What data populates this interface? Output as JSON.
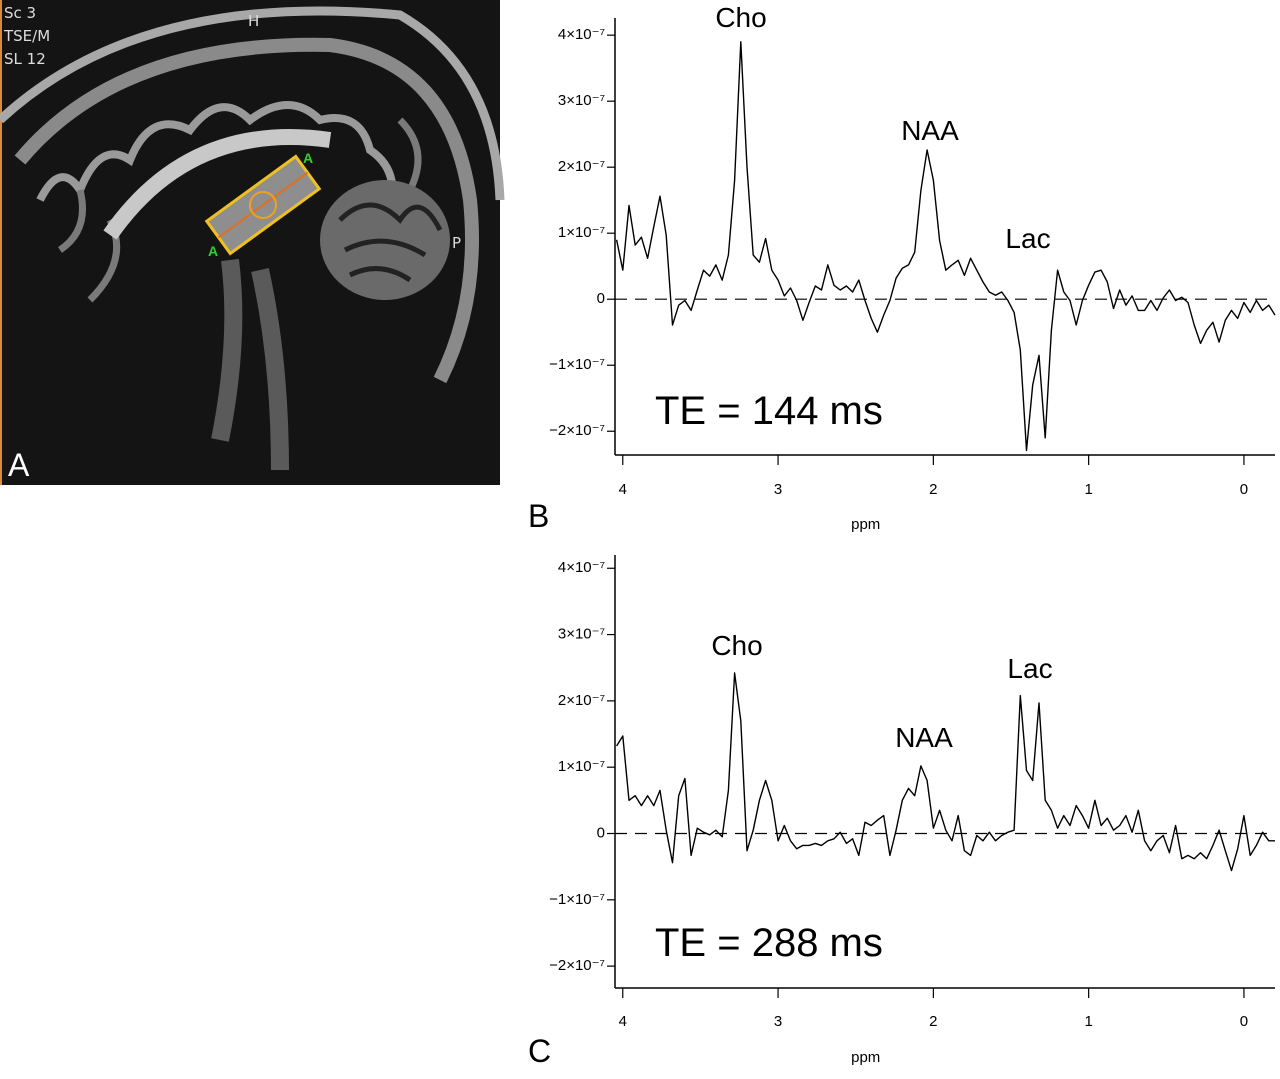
{
  "image_panel": {
    "panel_label": "A",
    "scan_labels": [
      "Sc 3",
      "TSE/M",
      "SL 12"
    ],
    "orientation_labels": [
      "H",
      "P"
    ],
    "voxel_labels": [
      "A",
      "A"
    ]
  },
  "chart_data": [
    {
      "type": "line",
      "panel_label": "B",
      "xlabel": "ppm",
      "annotations": [
        "Cho",
        "NAA",
        "Lac",
        "TE = 144 ms"
      ],
      "line_color": "#000000",
      "zero_line": true,
      "grid": false,
      "xlim": [
        4.05,
        -0.2
      ],
      "xticks": [
        4,
        3,
        2,
        1,
        0
      ],
      "ylim": [
        -2.36e-07,
        4.26e-07
      ],
      "yticks": [
        {
          "value": -2e-07,
          "label": "−2×10⁻⁷"
        },
        {
          "value": -1e-07,
          "label": "−1×10⁻⁷"
        },
        0,
        {
          "value": 1e-07,
          "label": "1×10⁻⁷"
        },
        {
          "value": 2e-07,
          "label": "2×10⁻⁷"
        },
        {
          "value": 3e-07,
          "label": "3×10⁻⁷"
        },
        {
          "value": 4e-07,
          "label": "4×10⁻⁷"
        }
      ],
      "x": [
        4.04,
        4.0,
        3.96,
        3.92,
        3.88,
        3.84,
        3.8,
        3.76,
        3.72,
        3.68,
        3.64,
        3.6,
        3.56,
        3.52,
        3.48,
        3.44,
        3.4,
        3.36,
        3.32,
        3.28,
        3.24,
        3.2,
        3.16,
        3.12,
        3.08,
        3.04,
        3.0,
        2.96,
        2.92,
        2.88,
        2.84,
        2.8,
        2.76,
        2.72,
        2.68,
        2.64,
        2.6,
        2.56,
        2.52,
        2.48,
        2.44,
        2.4,
        2.36,
        2.32,
        2.28,
        2.24,
        2.2,
        2.16,
        2.12,
        2.08,
        2.04,
        2.0,
        1.96,
        1.92,
        1.88,
        1.84,
        1.8,
        1.76,
        1.72,
        1.68,
        1.64,
        1.6,
        1.56,
        1.52,
        1.48,
        1.44,
        1.4,
        1.36,
        1.32,
        1.28,
        1.24,
        1.2,
        1.16,
        1.12,
        1.08,
        1.04,
        1.0,
        0.96,
        0.92,
        0.88,
        0.84,
        0.8,
        0.76,
        0.72,
        0.68,
        0.64,
        0.6,
        0.56,
        0.52,
        0.48,
        0.44,
        0.4,
        0.36,
        0.32,
        0.28,
        0.24,
        0.2,
        0.16,
        0.12,
        0.08,
        0.04,
        0.0,
        -0.04,
        -0.08,
        -0.12,
        -0.16,
        -0.2
      ],
      "values": [
        9e-08,
        4.4e-08,
        1.42e-07,
        8.2e-08,
        9.4e-08,
        6.2e-08,
        1.1e-07,
        1.56e-07,
        9.7e-08,
        -3.9e-08,
        -9e-09,
        -2e-09,
        -1.7e-08,
        1.4e-08,
        4.4e-08,
        3.5e-08,
        5.2e-08,
        2.9e-08,
        6.7e-08,
        1.8e-07,
        3.9e-07,
        2e-07,
        6.7e-08,
        5.6e-08,
        9.2e-08,
        4.4e-08,
        2.9e-08,
        5e-09,
        1.7e-08,
        -2e-09,
        -3.2e-08,
        -5e-09,
        2e-08,
        1.4e-08,
        5.2e-08,
        2.1e-08,
        1.4e-08,
        2e-08,
        1.1e-08,
        2.9e-08,
        -2e-09,
        -2.9e-08,
        -5e-08,
        -2.4e-08,
        -2e-09,
        3.2e-08,
        4.7e-08,
        5.2e-08,
        7.1e-08,
        1.65e-07,
        2.26e-07,
        1.8e-07,
        8.9e-08,
        4.4e-08,
        5.2e-08,
        5.9e-08,
        3.6e-08,
        6.2e-08,
        4.4e-08,
        2.6e-08,
        1.1e-08,
        6e-09,
        1.1e-08,
        -2e-09,
        -2e-08,
        -7.7e-08,
        -2.29e-07,
        -1.3e-07,
        -8.5e-08,
        -2.1e-07,
        -4.7e-08,
        4.4e-08,
        1.1e-08,
        -2e-09,
        -3.9e-08,
        -2e-09,
        2.1e-08,
        4.1e-08,
        4.4e-08,
        2.6e-08,
        -1.4e-08,
        1.4e-08,
        -9e-09,
        5e-09,
        -1.7e-08,
        -1.7e-08,
        -2e-09,
        -1.7e-08,
        2e-09,
        1.4e-08,
        -2e-09,
        3e-09,
        -5e-09,
        -3.9e-08,
        -6.7e-08,
        -4.7e-08,
        -3.5e-08,
        -6.5e-08,
        -3.2e-08,
        -1.7e-08,
        -2.9e-08,
        -5e-09,
        -2e-08,
        -2e-09,
        -1.7e-08,
        -9e-09,
        -2.4e-08
      ]
    },
    {
      "type": "line",
      "panel_label": "C",
      "xlabel": "ppm",
      "annotations": [
        "Cho",
        "NAA",
        "Lac",
        "TE = 288 ms"
      ],
      "line_color": "#000000",
      "zero_line": true,
      "grid": false,
      "xlim": [
        4.05,
        -0.2
      ],
      "xticks": [
        4,
        3,
        2,
        1,
        0
      ],
      "ylim": [
        -2.33e-07,
        4.2e-07
      ],
      "yticks": [
        {
          "value": -2e-07,
          "label": "−2×10⁻⁷"
        },
        {
          "value": -1e-07,
          "label": "−1×10⁻⁷"
        },
        0,
        {
          "value": 1e-07,
          "label": "1×10⁻⁷"
        },
        {
          "value": 2e-07,
          "label": "2×10⁻⁷"
        },
        {
          "value": 3e-07,
          "label": "3×10⁻⁷"
        },
        {
          "value": 4e-07,
          "label": "4×10⁻⁷"
        }
      ],
      "x": [
        4.04,
        4.0,
        3.96,
        3.92,
        3.88,
        3.84,
        3.8,
        3.76,
        3.72,
        3.68,
        3.64,
        3.6,
        3.56,
        3.52,
        3.48,
        3.44,
        3.4,
        3.36,
        3.32,
        3.28,
        3.24,
        3.2,
        3.16,
        3.12,
        3.08,
        3.04,
        3.0,
        2.96,
        2.92,
        2.88,
        2.84,
        2.8,
        2.76,
        2.72,
        2.68,
        2.64,
        2.6,
        2.56,
        2.52,
        2.48,
        2.44,
        2.4,
        2.36,
        2.32,
        2.28,
        2.24,
        2.2,
        2.16,
        2.12,
        2.08,
        2.04,
        2.0,
        1.96,
        1.92,
        1.88,
        1.84,
        1.8,
        1.76,
        1.72,
        1.68,
        1.64,
        1.6,
        1.56,
        1.52,
        1.48,
        1.44,
        1.4,
        1.36,
        1.32,
        1.28,
        1.24,
        1.2,
        1.16,
        1.12,
        1.08,
        1.04,
        1.0,
        0.96,
        0.92,
        0.88,
        0.84,
        0.8,
        0.76,
        0.72,
        0.68,
        0.64,
        0.6,
        0.56,
        0.52,
        0.48,
        0.44,
        0.4,
        0.36,
        0.32,
        0.28,
        0.24,
        0.2,
        0.16,
        0.12,
        0.08,
        0.04,
        0.0,
        -0.04,
        -0.08,
        -0.12,
        -0.16,
        -0.2
      ],
      "values": [
        1.32e-07,
        1.47e-07,
        5e-08,
        5.7e-08,
        4.2e-08,
        5.7e-08,
        4.2e-08,
        6.5e-08,
        5e-09,
        -4.4e-08,
        5.7e-08,
        8.3e-08,
        -3.3e-08,
        8e-09,
        2e-09,
        -2e-09,
        5e-09,
        -5e-09,
        6.5e-08,
        2.42e-07,
        1.7e-07,
        -2.6e-08,
        5e-09,
        5e-08,
        8e-08,
        5e-08,
        -1.1e-08,
        1.2e-08,
        -1.1e-08,
        -2.3e-08,
        -1.8e-08,
        -1.8e-08,
        -1.5e-08,
        -1.8e-08,
        -1.1e-08,
        -8e-09,
        2e-09,
        -1.5e-08,
        -8e-09,
        -3.3e-08,
        1.7e-08,
        1.2e-08,
        2e-08,
        2.7e-08,
        -3.3e-08,
        5e-09,
        5e-08,
        6.8e-08,
        5.7e-08,
        1.02e-07,
        8e-08,
        8e-09,
        3.5e-08,
        5e-09,
        -1.1e-08,
        2.7e-08,
        -2.6e-08,
        -3.3e-08,
        -3e-09,
        -1.1e-08,
        2e-09,
        -1.1e-08,
        -3e-09,
        2e-09,
        5e-09,
        2.08e-07,
        9.5e-08,
        8e-08,
        1.97e-07,
        5e-08,
        3.5e-08,
        8e-09,
        2.7e-08,
        1.2e-08,
        4.2e-08,
        2.7e-08,
        8e-09,
        5e-08,
        1.2e-08,
        2.3e-08,
        5e-09,
        1.2e-08,
        2.7e-08,
        2e-09,
        3.5e-08,
        -1.1e-08,
        -2.6e-08,
        -1.1e-08,
        -3e-09,
        -2.9e-08,
        1.2e-08,
        -3.8e-08,
        -3.3e-08,
        -3.8e-08,
        -2.9e-08,
        -3.8e-08,
        -1.8e-08,
        5e-09,
        -2.6e-08,
        -5.6e-08,
        -2.3e-08,
        2.7e-08,
        -3.3e-08,
        -1.8e-08,
        2e-09,
        -1.1e-08,
        -1.1e-08
      ]
    }
  ]
}
